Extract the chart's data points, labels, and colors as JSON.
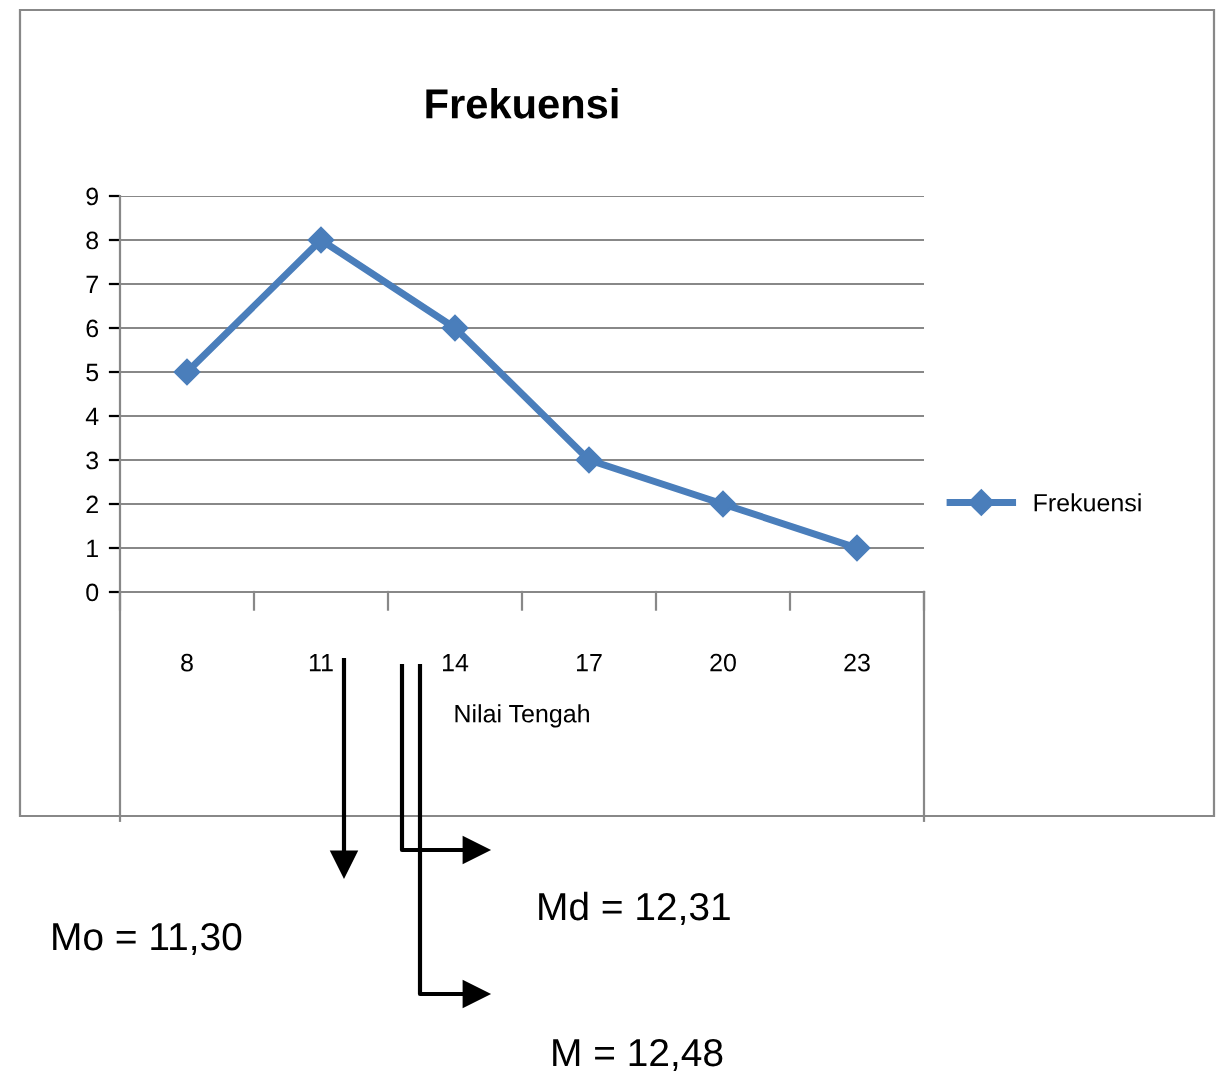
{
  "chart_data": {
    "type": "line",
    "title": "Frekuensi",
    "xlabel": "Nilai Tengah",
    "categories": [
      "8",
      "11",
      "14",
      "17",
      "20",
      "23"
    ],
    "series": [
      {
        "name": "Frekuensi",
        "color": "#4a7ebb",
        "values": [
          5,
          8,
          6,
          3,
          2,
          1
        ]
      }
    ],
    "ylim": [
      0,
      9
    ],
    "yticks": [
      0,
      1,
      2,
      3,
      4,
      5,
      6,
      7,
      8,
      9
    ],
    "grid": "y",
    "legend": "right",
    "marker": "diamond",
    "line_style": "solid",
    "annotations": [
      "Mo = 11,30",
      "Md = 12,31",
      "M = 12,48"
    ]
  }
}
